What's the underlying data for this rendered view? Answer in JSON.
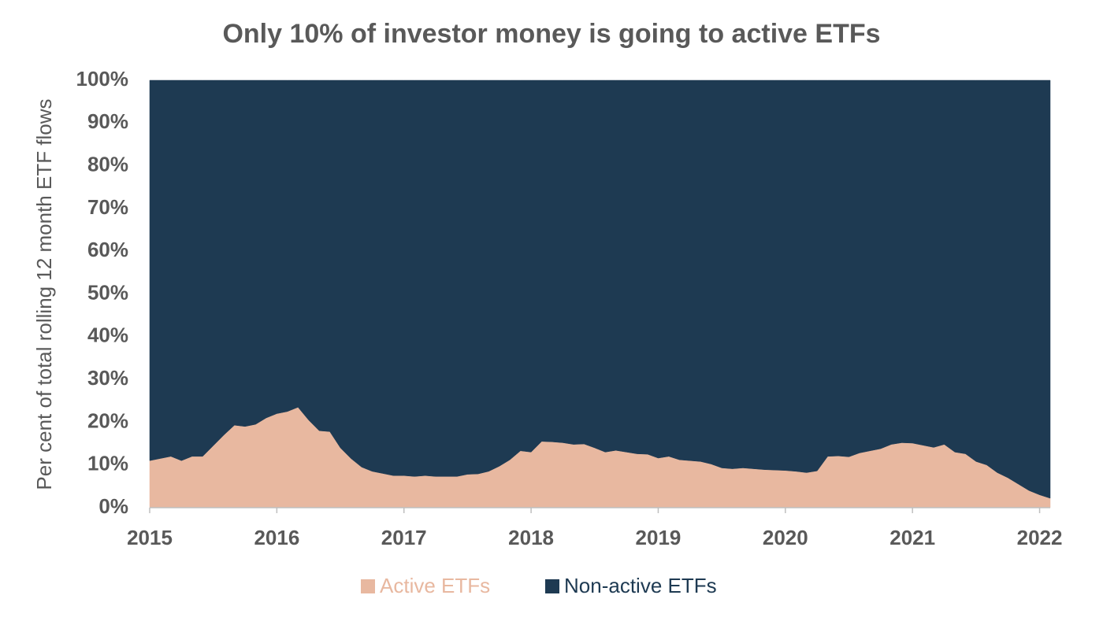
{
  "chart_data": {
    "type": "stacked_area",
    "title": "Only 10% of investor money is going to active ETFs",
    "y_label": "Per cent of total rolling 12 month ETF flows",
    "categories": [
      "2015",
      null,
      null,
      null,
      null,
      null,
      null,
      null,
      null,
      null,
      null,
      null,
      "2016",
      null,
      null,
      null,
      null,
      null,
      null,
      null,
      null,
      null,
      null,
      null,
      "2017",
      null,
      null,
      null,
      null,
      null,
      null,
      null,
      null,
      null,
      null,
      null,
      "2018",
      null,
      null,
      null,
      null,
      null,
      null,
      null,
      null,
      null,
      null,
      null,
      "2019",
      null,
      null,
      null,
      null,
      null,
      null,
      null,
      null,
      null,
      null,
      null,
      "2020",
      null,
      null,
      null,
      null,
      null,
      null,
      null,
      null,
      null,
      null,
      null,
      "2021",
      null,
      null,
      null,
      null,
      null,
      null,
      null,
      null,
      null,
      null,
      null,
      "2022",
      null
    ],
    "series": [
      {
        "name": "Active ETFs",
        "color": "#e8b8a0",
        "values": [
          11,
          11.5,
          12,
          11,
          12,
          12,
          14.5,
          17,
          19.3,
          19,
          19.5,
          21,
          22,
          22.5,
          23.5,
          20.5,
          18,
          17.8,
          14,
          11.5,
          9.5,
          8.5,
          8,
          7.5,
          7.5,
          7.3,
          7.5,
          7.3,
          7.3,
          7.3,
          7.8,
          7.9,
          8.5,
          9.7,
          11.2,
          13.3,
          13,
          15.5,
          15.4,
          15.2,
          14.8,
          14.9,
          14,
          13,
          13.4,
          13,
          12.6,
          12.5,
          11.6,
          12,
          11.2,
          11,
          10.8,
          10.2,
          9.3,
          9.1,
          9.3,
          9.1,
          8.9,
          8.8,
          8.7,
          8.5,
          8.2,
          8.6,
          12,
          12.1,
          11.9,
          12.8,
          13.3,
          13.8,
          14.8,
          15.2,
          15.1,
          14.6,
          14.1,
          14.8,
          13,
          12.6,
          10.8,
          10,
          8.2,
          7,
          5.5,
          4,
          3,
          2.2
        ]
      },
      {
        "name": "Non-active ETFs",
        "color": "#1e3a52",
        "values": [
          89,
          88.5,
          88,
          89,
          88,
          88,
          85.5,
          83,
          80.7,
          81,
          80.5,
          79,
          78,
          77.5,
          76.5,
          79.5,
          82,
          82.2,
          86,
          88.5,
          90.5,
          91.5,
          92,
          92.5,
          92.5,
          92.7,
          92.5,
          92.7,
          92.7,
          92.7,
          92.2,
          92.1,
          91.5,
          90.3,
          88.8,
          86.7,
          87,
          84.5,
          84.6,
          84.8,
          85.2,
          85.1,
          86,
          87,
          86.6,
          87,
          87.4,
          87.5,
          88.4,
          88,
          88.8,
          89,
          89.2,
          89.8,
          90.7,
          90.9,
          90.7,
          90.9,
          91.1,
          91.2,
          91.3,
          91.5,
          91.8,
          91.4,
          88,
          87.9,
          88.1,
          87.2,
          86.7,
          86.2,
          85.2,
          84.8,
          84.9,
          85.4,
          85.9,
          85.2,
          87,
          87.4,
          89.2,
          90,
          91.8,
          93,
          94.5,
          96,
          97,
          97.8
        ]
      }
    ],
    "ylim": [
      0,
      100
    ],
    "yticks": [
      {
        "value": 0,
        "label": "0%"
      },
      {
        "value": 10,
        "label": "10%"
      },
      {
        "value": 20,
        "label": "20%"
      },
      {
        "value": 30,
        "label": "30%"
      },
      {
        "value": 40,
        "label": "40%"
      },
      {
        "value": 50,
        "label": "50%"
      },
      {
        "value": 60,
        "label": "60%"
      },
      {
        "value": 70,
        "label": "70%"
      },
      {
        "value": 80,
        "label": "80%"
      },
      {
        "value": 90,
        "label": "90%"
      },
      {
        "value": 100,
        "label": "100%"
      }
    ],
    "legend": "bottom"
  }
}
